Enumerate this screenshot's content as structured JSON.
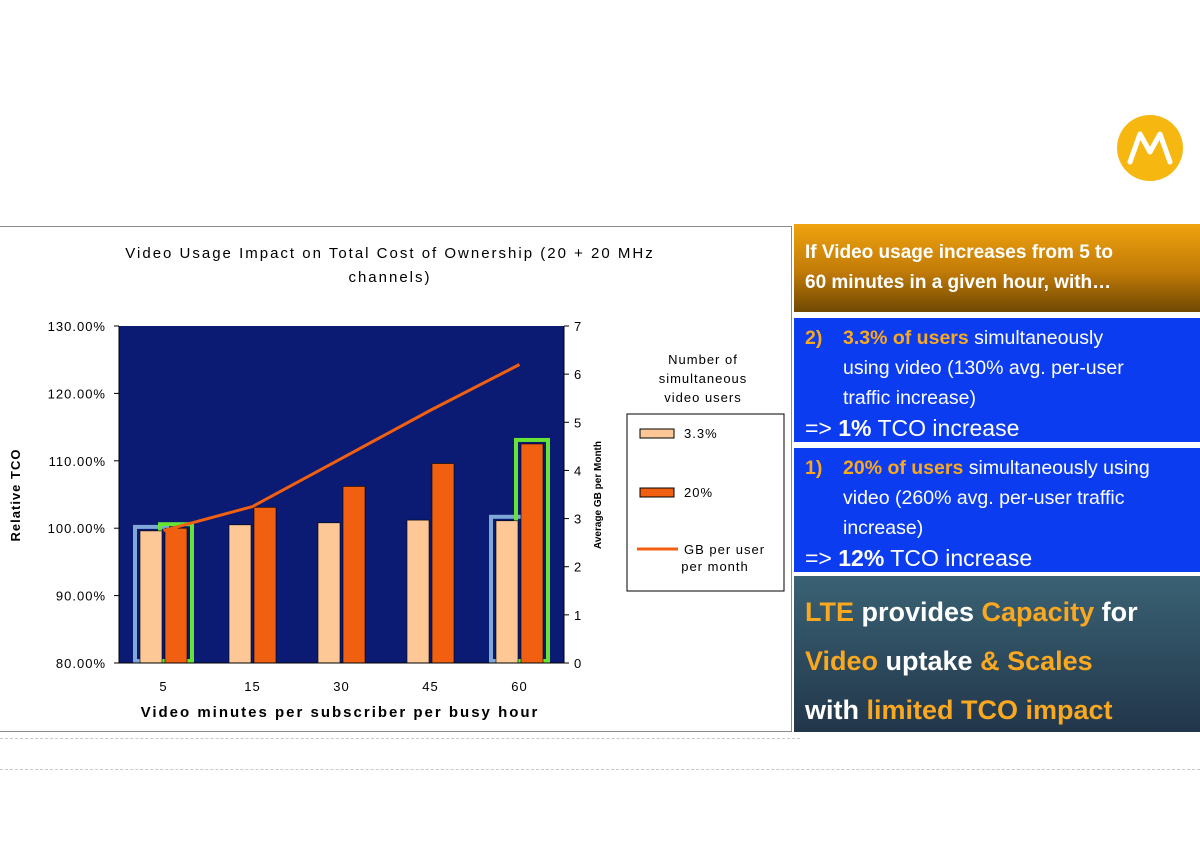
{
  "chart_data": {
    "type": "bar",
    "title_line1": "Video Usage Impact on Total Cost of Ownership (20 + 20 MHz",
    "title_line2": "channels)",
    "xlabel": "Video minutes per subscriber per busy hour",
    "ylabel": "Relative TCO",
    "y2label": "Average GB per Month",
    "categories": [
      "5",
      "15",
      "30",
      "45",
      "60"
    ],
    "ylim": [
      80,
      130
    ],
    "yticks": [
      "80.00%",
      "90.00%",
      "100.00%",
      "110.00%",
      "120.00%",
      "130.00%"
    ],
    "y2lim": [
      0,
      7
    ],
    "y2ticks": [
      "0",
      "1",
      "2",
      "3",
      "4",
      "5",
      "6",
      "7"
    ],
    "series": [
      {
        "name": "3.3%",
        "type": "bar",
        "axis": "left",
        "color": "#fdc796",
        "values": [
          99.6,
          100.5,
          100.8,
          101.2,
          101.1
        ]
      },
      {
        "name": "20%",
        "type": "bar",
        "axis": "left",
        "color": "#f06010",
        "values": [
          100.0,
          103.1,
          106.2,
          109.6,
          112.5
        ]
      },
      {
        "name": "GB per user per month",
        "type": "line",
        "axis": "right",
        "color": "#f06010",
        "values": [
          2.75,
          3.25,
          4.25,
          5.25,
          6.2
        ]
      }
    ],
    "legend_title": [
      "Number of",
      "simultaneous",
      "video users"
    ],
    "legend_gb_lines": [
      "GB per user",
      "per month"
    ],
    "legend_position": "right",
    "plot_background": "#0b1a73",
    "highlight_colors": {
      "blue": "#7ea8d8",
      "green": "#66e436"
    },
    "grid": false
  },
  "logo": {
    "name": "motorola-logo-icon",
    "color": "#f6b711"
  },
  "header": {
    "line1": "If Video usage increases from 5 to",
    "line2": "60 minutes in a given hour, with…"
  },
  "box2": {
    "num": "2)",
    "hl": "3.3% of users",
    "rest1": " simultaneously",
    "line2": "using video (130% avg. per-user",
    "line3": "traffic increase)",
    "result_arrow": "=> ",
    "result_bold": "1%",
    "result_rest": " TCO increase"
  },
  "box1": {
    "num": "1)",
    "hl": "20% of users",
    "rest1": " simultaneously using",
    "line2": "video (260% avg. per-user traffic",
    "line3": "increase)",
    "result_arrow": "=> ",
    "result_bold": "12%",
    "result_rest": " TCO increase"
  },
  "summary": {
    "w1": "LTE",
    "w2": " provides ",
    "w3": "Capacity",
    "w4": " for",
    "w5": "Video",
    "w6": " uptake ",
    "w7": "& Scales",
    "w8": "with ",
    "w9": "limited TCO impact"
  },
  "colors": {
    "header_orange": "#f0a30f",
    "blue_box": "#0c3cf0",
    "highlight_orange": "#f9a81f",
    "summary_bg": "#2c4a5e"
  }
}
